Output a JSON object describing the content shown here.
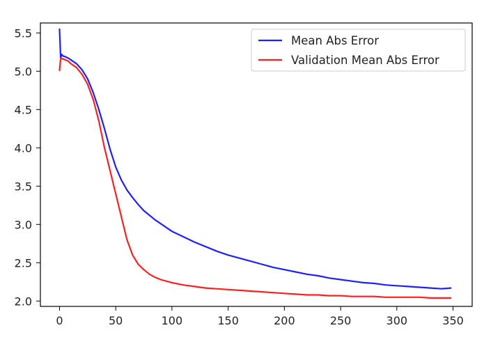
{
  "chart_data": {
    "type": "line",
    "title": "",
    "xlabel": "",
    "ylabel": "",
    "xlim": [
      -17,
      367
    ],
    "ylim": [
      1.93,
      5.63
    ],
    "x_ticks": [
      0,
      50,
      100,
      150,
      200,
      250,
      300,
      350
    ],
    "x_tick_labels": [
      "0",
      "50",
      "100",
      "150",
      "200",
      "250",
      "300",
      "350"
    ],
    "y_ticks": [
      2.0,
      2.5,
      3.0,
      3.5,
      4.0,
      4.5,
      5.0,
      5.5
    ],
    "y_tick_labels": [
      "2.0",
      "2.5",
      "3.0",
      "3.5",
      "4.0",
      "4.5",
      "5.0",
      "5.5"
    ],
    "grid": false,
    "legend_position": "top-right",
    "x": [
      0,
      1,
      2,
      3,
      5,
      8,
      10,
      15,
      20,
      25,
      30,
      35,
      40,
      45,
      50,
      55,
      60,
      65,
      70,
      75,
      80,
      85,
      90,
      95,
      100,
      110,
      120,
      130,
      140,
      150,
      160,
      170,
      180,
      190,
      200,
      210,
      220,
      230,
      240,
      250,
      260,
      270,
      280,
      290,
      300,
      310,
      320,
      330,
      340,
      348
    ],
    "series": [
      {
        "name": "Mean Abs Error",
        "color": "#1f1fff",
        "values": [
          5.55,
          5.18,
          5.22,
          5.2,
          5.19,
          5.17,
          5.15,
          5.1,
          5.02,
          4.9,
          4.72,
          4.5,
          4.25,
          3.98,
          3.75,
          3.58,
          3.45,
          3.35,
          3.26,
          3.18,
          3.12,
          3.06,
          3.01,
          2.96,
          2.91,
          2.84,
          2.77,
          2.71,
          2.65,
          2.6,
          2.56,
          2.52,
          2.48,
          2.44,
          2.41,
          2.38,
          2.35,
          2.33,
          2.3,
          2.28,
          2.26,
          2.24,
          2.23,
          2.21,
          2.2,
          2.19,
          2.18,
          2.17,
          2.16,
          2.17
        ]
      },
      {
        "name": "Validation Mean Abs Error",
        "color": "#ff1f1f",
        "values": [
          5.01,
          5.16,
          5.17,
          5.16,
          5.15,
          5.13,
          5.1,
          5.05,
          4.96,
          4.83,
          4.63,
          4.35,
          4.0,
          3.7,
          3.4,
          3.1,
          2.8,
          2.6,
          2.48,
          2.41,
          2.35,
          2.31,
          2.28,
          2.26,
          2.24,
          2.21,
          2.19,
          2.17,
          2.16,
          2.15,
          2.14,
          2.13,
          2.12,
          2.11,
          2.1,
          2.09,
          2.08,
          2.08,
          2.07,
          2.07,
          2.06,
          2.06,
          2.06,
          2.05,
          2.05,
          2.05,
          2.05,
          2.04,
          2.04,
          2.04
        ]
      }
    ]
  }
}
